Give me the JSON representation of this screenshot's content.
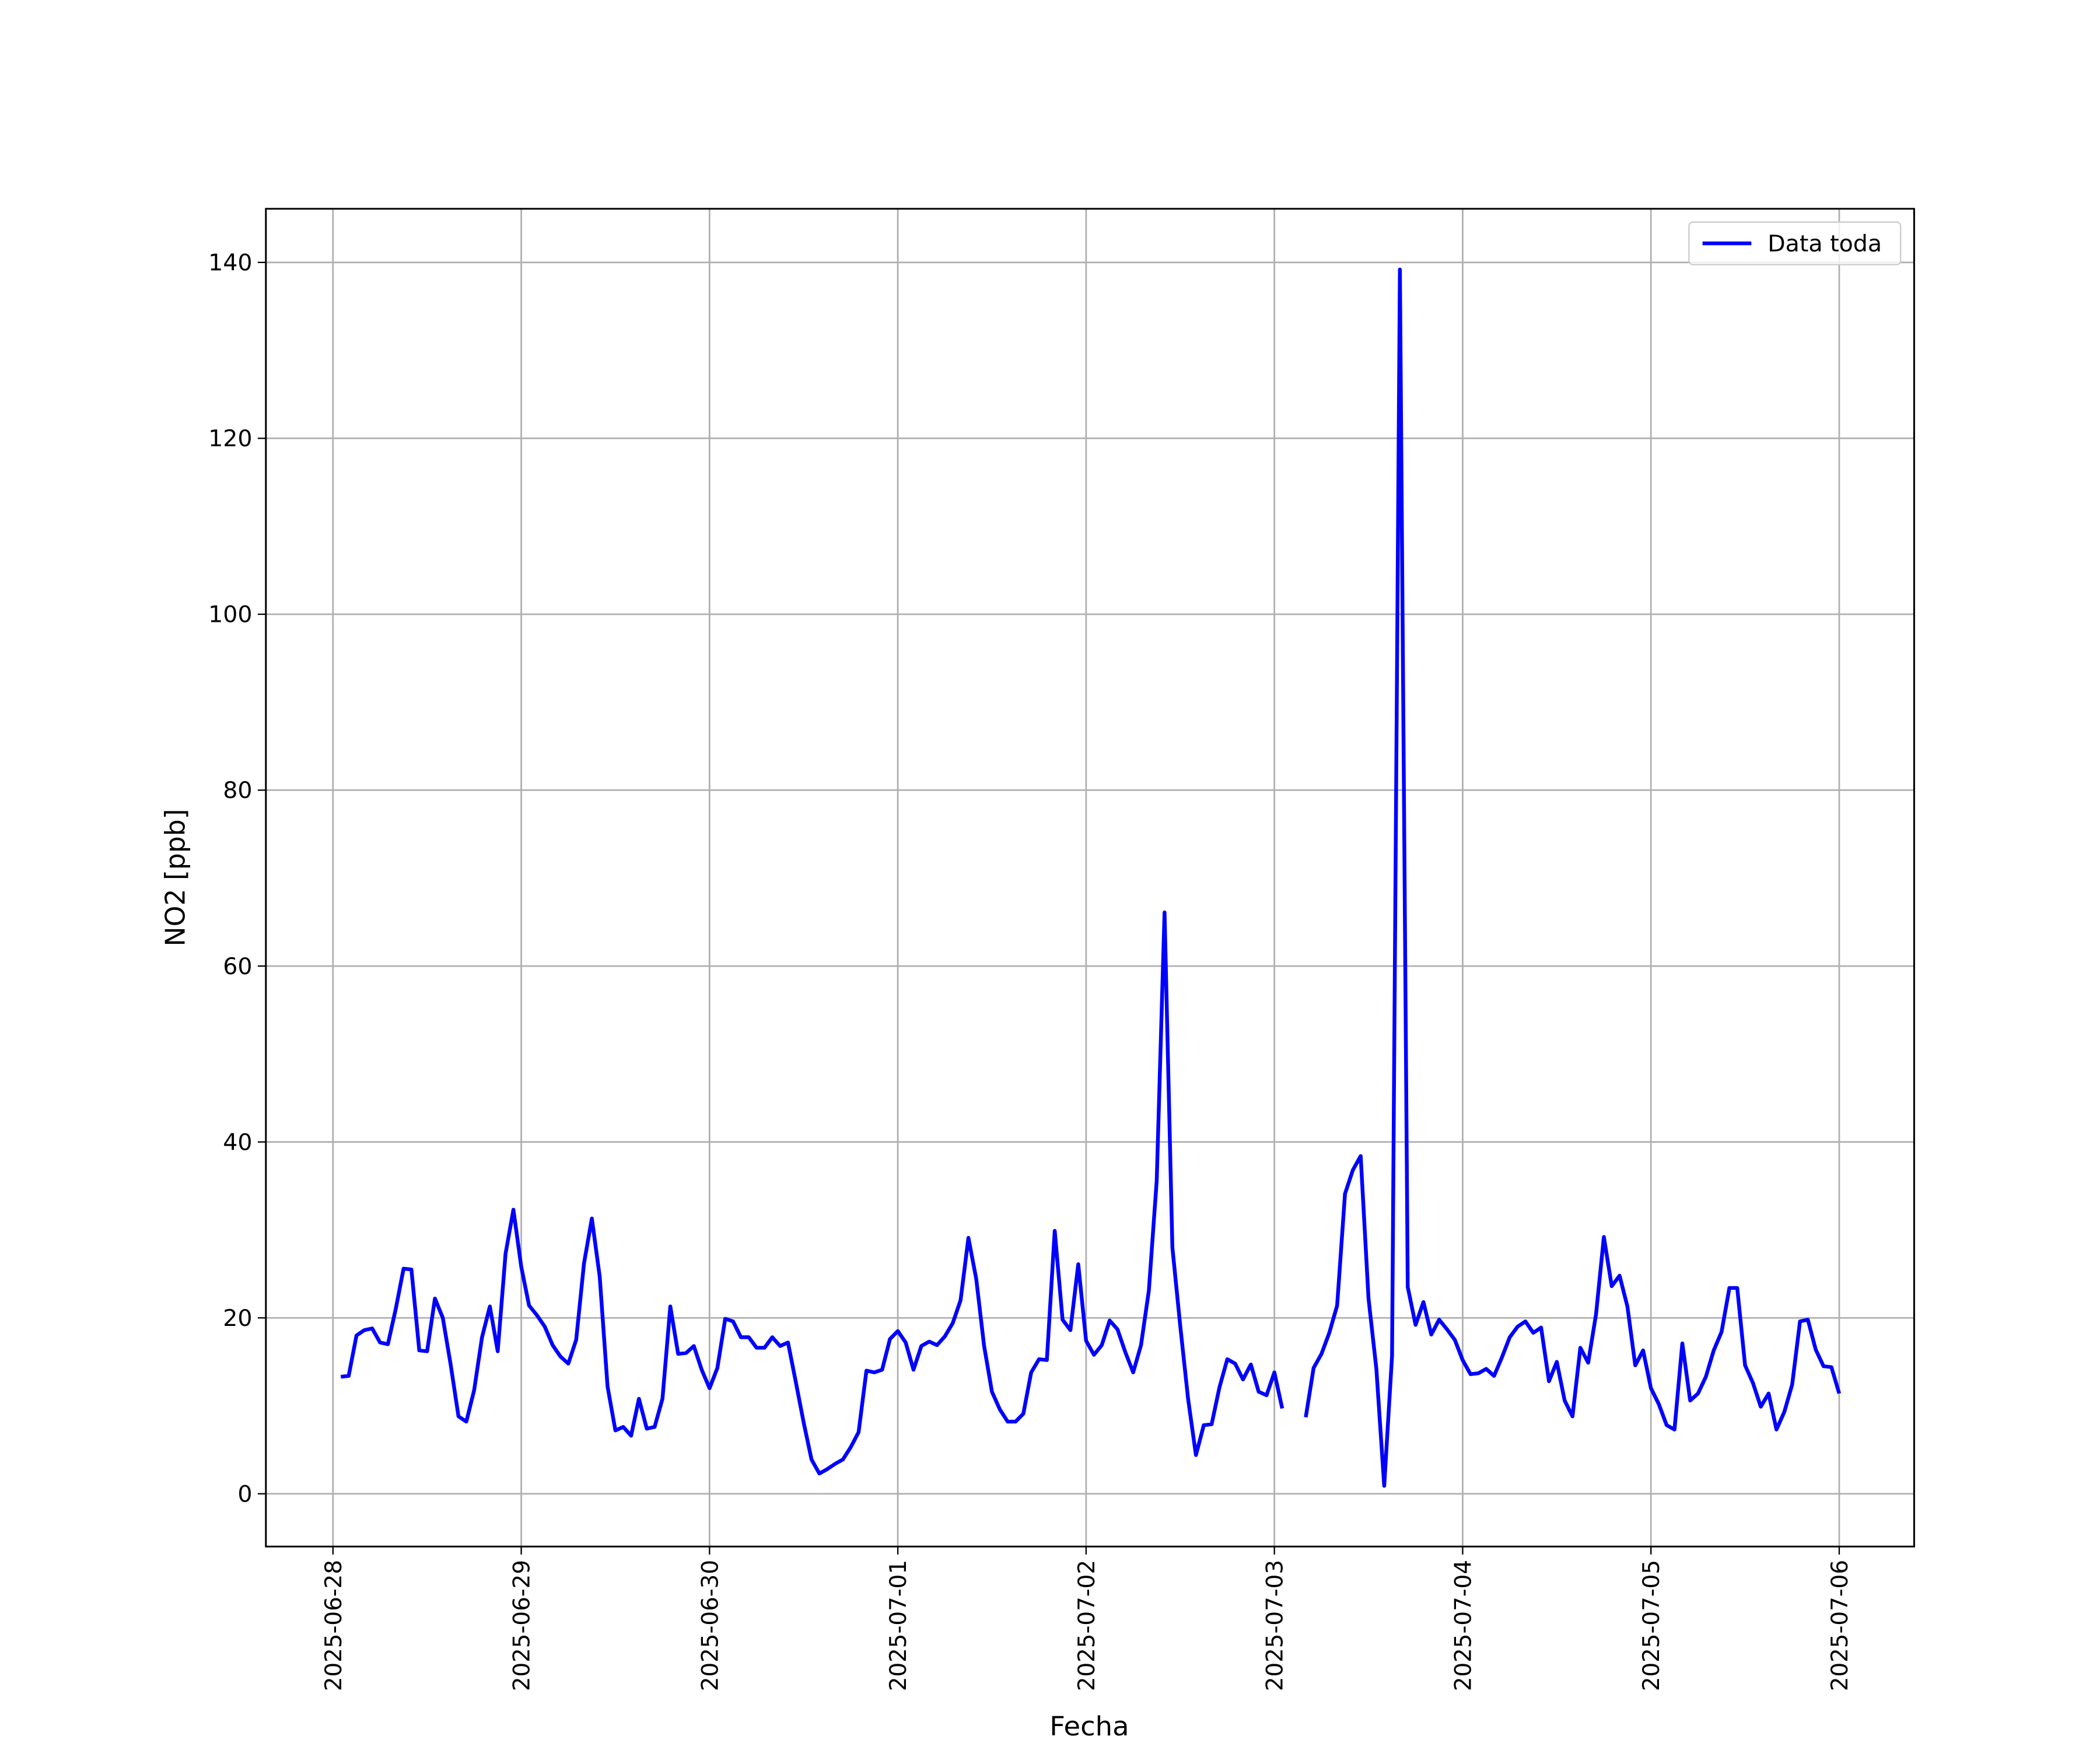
{
  "chart_data": {
    "type": "line",
    "xlabel": "Fecha",
    "ylabel": "NO2 [ppb]",
    "x": [
      "2025-06-28 01:00",
      "2025-06-28 02:00",
      "2025-06-28 03:00",
      "2025-06-28 04:00",
      "2025-06-28 05:00",
      "2025-06-28 06:00",
      "2025-06-28 07:00",
      "2025-06-28 08:00",
      "2025-06-28 09:00",
      "2025-06-28 10:00",
      "2025-06-28 11:00",
      "2025-06-28 12:00",
      "2025-06-28 13:00",
      "2025-06-28 14:00",
      "2025-06-28 15:00",
      "2025-06-28 16:00",
      "2025-06-28 17:00",
      "2025-06-28 18:00",
      "2025-06-28 19:00",
      "2025-06-28 20:00",
      "2025-06-28 21:00",
      "2025-06-28 22:00",
      "2025-06-28 23:00",
      "2025-06-29 00:00",
      "2025-06-29 01:00",
      "2025-06-29 02:00",
      "2025-06-29 03:00",
      "2025-06-29 04:00",
      "2025-06-29 05:00",
      "2025-06-29 06:00",
      "2025-06-29 07:00",
      "2025-06-29 08:00",
      "2025-06-29 09:00",
      "2025-06-29 10:00",
      "2025-06-29 11:00",
      "2025-06-29 12:00",
      "2025-06-29 13:00",
      "2025-06-29 14:00",
      "2025-06-29 15:00",
      "2025-06-29 16:00",
      "2025-06-29 17:00",
      "2025-06-29 18:00",
      "2025-06-29 19:00",
      "2025-06-29 20:00",
      "2025-06-29 21:00",
      "2025-06-29 22:00",
      "2025-06-29 23:00",
      "2025-06-30 00:00",
      "2025-06-30 01:00",
      "2025-06-30 02:00",
      "2025-06-30 03:00",
      "2025-06-30 04:00",
      "2025-06-30 05:00",
      "2025-06-30 06:00",
      "2025-06-30 07:00",
      "2025-06-30 08:00",
      "2025-06-30 09:00",
      "2025-06-30 10:00",
      "2025-06-30 11:00",
      "2025-06-30 12:00",
      "2025-06-30 13:00",
      "2025-06-30 14:00",
      "2025-06-30 15:00",
      "2025-06-30 16:00",
      "2025-06-30 17:00",
      "2025-06-30 18:00",
      "2025-06-30 19:00",
      "2025-06-30 20:00",
      "2025-06-30 21:00",
      "2025-06-30 22:00",
      "2025-06-30 23:00",
      "2025-07-01 00:00",
      "2025-07-01 01:00",
      "2025-07-01 02:00",
      "2025-07-01 03:00",
      "2025-07-01 04:00",
      "2025-07-01 05:00",
      "2025-07-01 06:00",
      "2025-07-01 07:00",
      "2025-07-01 08:00",
      "2025-07-01 09:00",
      "2025-07-01 10:00",
      "2025-07-01 11:00",
      "2025-07-01 12:00",
      "2025-07-01 13:00",
      "2025-07-01 14:00",
      "2025-07-01 15:00",
      "2025-07-01 16:00",
      "2025-07-01 17:00",
      "2025-07-01 18:00",
      "2025-07-01 19:00",
      "2025-07-01 20:00",
      "2025-07-01 21:00",
      "2025-07-01 22:00",
      "2025-07-01 23:00",
      "2025-07-02 00:00",
      "2025-07-02 01:00",
      "2025-07-02 02:00",
      "2025-07-02 03:00",
      "2025-07-02 04:00",
      "2025-07-02 05:00",
      "2025-07-02 06:00",
      "2025-07-02 07:00",
      "2025-07-02 08:00",
      "2025-07-02 09:00",
      "2025-07-02 10:00",
      "2025-07-02 11:00",
      "2025-07-02 12:00",
      "2025-07-02 13:00",
      "2025-07-02 14:00",
      "2025-07-02 15:00",
      "2025-07-02 16:00",
      "2025-07-02 17:00",
      "2025-07-02 18:00",
      "2025-07-02 19:00",
      "2025-07-02 20:00",
      "2025-07-02 21:00",
      "2025-07-02 22:00",
      "2025-07-02 23:00",
      "2025-07-03 00:00",
      "2025-07-03 01:00",
      "2025-07-03 02:00",
      "2025-07-03 03:00",
      "2025-07-03 04:00",
      "2025-07-03 05:00",
      "2025-07-03 06:00",
      "2025-07-03 07:00",
      "2025-07-03 08:00",
      "2025-07-03 09:00",
      "2025-07-03 10:00",
      "2025-07-03 11:00",
      "2025-07-03 12:00",
      "2025-07-03 13:00",
      "2025-07-03 14:00",
      "2025-07-03 15:00",
      "2025-07-03 16:00",
      "2025-07-03 17:00",
      "2025-07-03 18:00",
      "2025-07-03 19:00",
      "2025-07-03 20:00",
      "2025-07-03 21:00",
      "2025-07-03 22:00",
      "2025-07-03 23:00",
      "2025-07-04 00:00",
      "2025-07-04 01:00",
      "2025-07-04 02:00",
      "2025-07-04 03:00",
      "2025-07-04 04:00",
      "2025-07-04 05:00",
      "2025-07-04 06:00",
      "2025-07-04 07:00",
      "2025-07-04 08:00",
      "2025-07-04 09:00",
      "2025-07-04 10:00",
      "2025-07-04 11:00",
      "2025-07-04 12:00",
      "2025-07-04 13:00",
      "2025-07-04 14:00",
      "2025-07-04 15:00",
      "2025-07-04 16:00",
      "2025-07-04 17:00",
      "2025-07-04 18:00",
      "2025-07-04 19:00",
      "2025-07-04 20:00",
      "2025-07-04 21:00",
      "2025-07-04 22:00",
      "2025-07-04 23:00",
      "2025-07-05 00:00",
      "2025-07-05 01:00",
      "2025-07-05 02:00",
      "2025-07-05 03:00",
      "2025-07-05 04:00",
      "2025-07-05 05:00",
      "2025-07-05 06:00",
      "2025-07-05 07:00",
      "2025-07-05 08:00",
      "2025-07-05 09:00",
      "2025-07-05 10:00",
      "2025-07-05 11:00",
      "2025-07-05 12:00",
      "2025-07-05 13:00",
      "2025-07-05 14:00",
      "2025-07-05 15:00",
      "2025-07-05 16:00",
      "2025-07-05 17:00",
      "2025-07-05 18:00",
      "2025-07-05 19:00",
      "2025-07-05 20:00",
      "2025-07-05 21:00",
      "2025-07-05 22:00",
      "2025-07-05 23:00",
      "2025-07-06 00:00"
    ],
    "series": [
      {
        "name": "Data toda",
        "color": "#0000ff",
        "values": [
          13.3,
          13.4,
          18,
          18.6,
          18.8,
          17.2,
          17,
          21,
          25.6,
          25.5,
          16.3,
          16.2,
          22.2,
          20,
          14.7,
          8.8,
          8.2,
          11.8,
          17.8,
          21.3,
          16.2,
          27.3,
          32.3,
          25.8,
          21.4,
          20.3,
          19,
          16.9,
          15.6,
          14.8,
          17.5,
          26.2,
          31.3,
          24.7,
          12.2,
          7.2,
          7.6,
          6.6,
          10.8,
          7.4,
          7.6,
          10.8,
          21.3,
          15.9,
          16,
          16.8,
          14.1,
          12,
          14.3,
          19.9,
          19.6,
          17.8,
          17.8,
          16.6,
          16.6,
          17.8,
          16.8,
          17.2,
          12.7,
          8.1,
          3.9,
          2.3,
          2.8,
          3.4,
          3.9,
          5.3,
          7,
          14,
          13.8,
          14.1,
          17.6,
          18.5,
          17.2,
          14.1,
          16.8,
          17.3,
          16.9,
          17.9,
          19.4,
          22,
          29.1,
          24.4,
          16.8,
          11.6,
          9.6,
          8.2,
          8.2,
          9.1,
          13.8,
          15.3,
          15.2,
          29.9,
          19.8,
          18.6,
          26.1,
          17.4,
          15.8,
          16.9,
          19.7,
          18.7,
          16.1,
          13.8,
          16.9,
          23.1,
          35.6,
          66.1,
          28,
          19.1,
          10.8,
          4.4,
          7.8,
          7.9,
          12.1,
          15.3,
          14.8,
          13,
          14.7,
          11.6,
          11.2,
          13.8,
          9.7,
          null,
          null,
          8.7,
          14.3,
          15.9,
          18.3,
          21.4,
          34.1,
          36.8,
          38.4,
          22.2,
          14.2,
          0.9,
          15.7,
          139.2,
          23.5,
          19.2,
          21.8,
          18.1,
          19.8,
          18.7,
          17.5,
          15.2,
          13.6,
          13.7,
          14.2,
          13.4,
          15.5,
          17.8,
          19,
          19.6,
          18.3,
          18.9,
          12.8,
          15,
          10.6,
          8.8,
          16.6,
          14.9,
          20.4,
          29.2,
          23.6,
          24.8,
          21.3,
          14.6,
          16.3,
          12,
          10.2,
          7.8,
          7.3,
          17.1,
          10.6,
          11.4,
          13.3,
          16.3,
          18.4,
          23.4,
          23.4,
          14.6,
          12.6,
          9.9,
          11.4,
          7.3,
          9.3,
          12.4,
          19.6,
          19.8,
          16.4,
          14.5,
          14.4,
          11.4
        ]
      }
    ],
    "xlim": [
      "2025-06-27 15:27",
      "2025-07-06 09:33"
    ],
    "xticks": [
      "2025-06-28",
      "2025-06-29",
      "2025-06-30",
      "2025-07-01",
      "2025-07-02",
      "2025-07-03",
      "2025-07-04",
      "2025-07-05",
      "2025-07-06"
    ],
    "ylim": [
      -6.0,
      146.1
    ],
    "yticks": [
      0,
      20,
      40,
      60,
      80,
      100,
      120,
      140
    ],
    "grid": true,
    "legend": "upper right"
  }
}
